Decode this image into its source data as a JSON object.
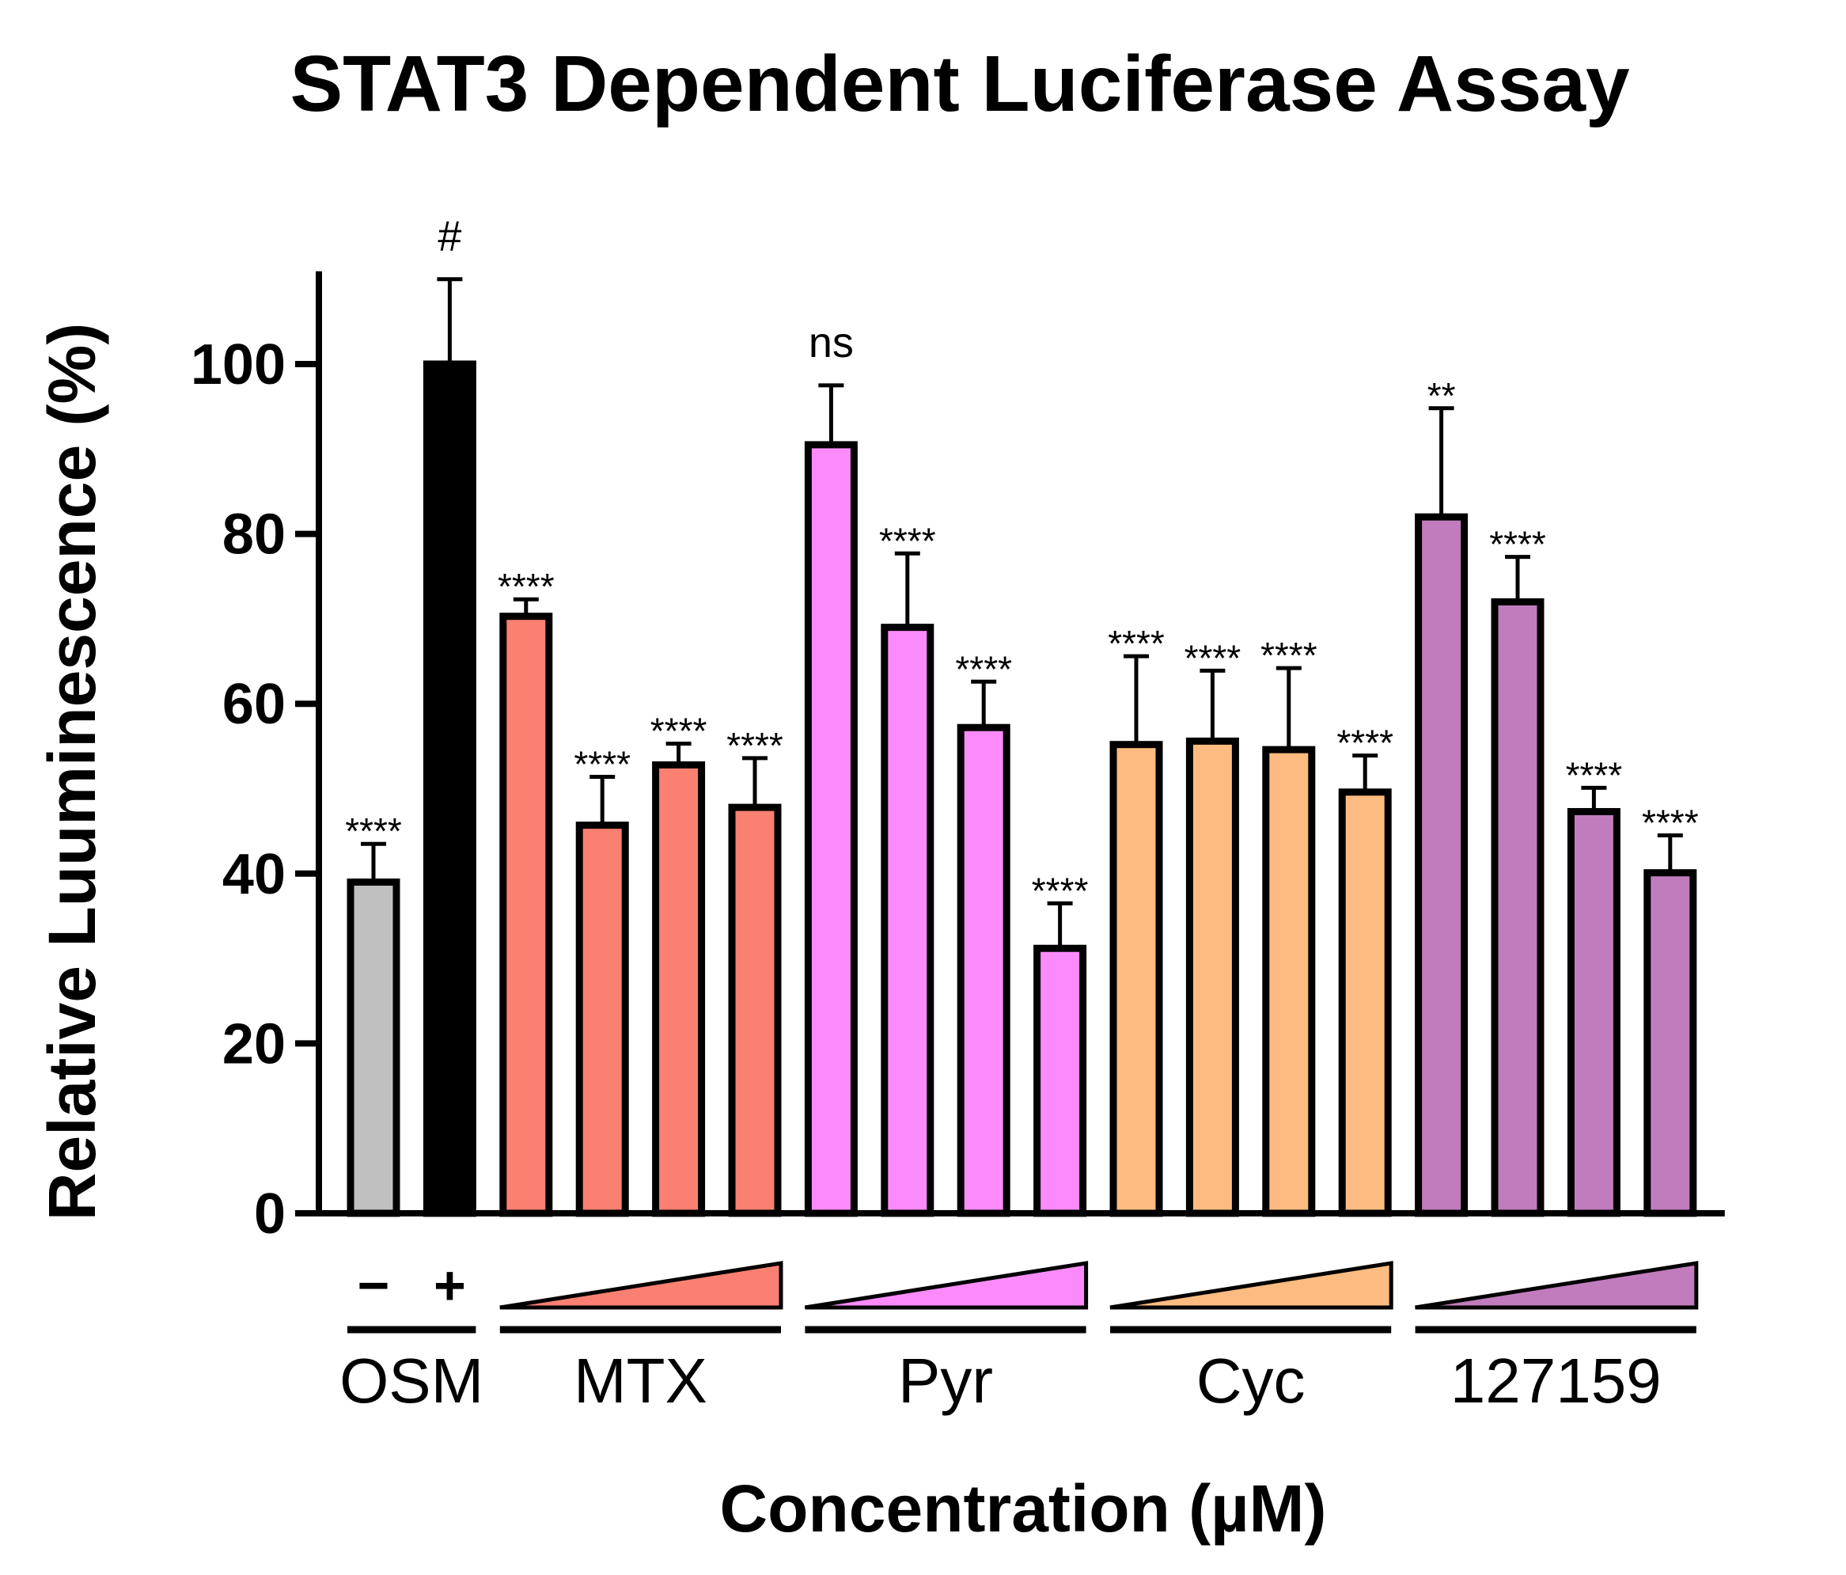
{
  "chart_data": {
    "type": "bar",
    "title": "STAT3  Dependent  Luciferase Assay",
    "xlabel": "Concentration (µM)",
    "ylabel": "Relative Luuminescence (%)",
    "ylim": [
      0,
      110
    ],
    "yticks": [
      0,
      20,
      40,
      60,
      80,
      100
    ],
    "grid": false,
    "groups": [
      {
        "name": "OSM",
        "color": "#c0c0c0",
        "bar_labels": [
          "−",
          "+"
        ],
        "bars": [
          {
            "value": 39,
            "error": 4.5,
            "annotation": "****",
            "color": "#c0c0c0"
          },
          {
            "value": 100,
            "error": 10,
            "annotation": "#",
            "color": "#000000"
          }
        ]
      },
      {
        "name": "MTX",
        "color": "#fa8072",
        "bars": [
          {
            "value": 70.3,
            "error": 2,
            "annotation": "****"
          },
          {
            "value": 45.7,
            "error": 5.7,
            "annotation": "****"
          },
          {
            "value": 52.8,
            "error": 2.5,
            "annotation": "****"
          },
          {
            "value": 47.8,
            "error": 5.8,
            "annotation": "****"
          }
        ]
      },
      {
        "name": "Pyr",
        "color": "#fb8bfb",
        "bars": [
          {
            "value": 90.5,
            "error": 7,
            "annotation": "ns"
          },
          {
            "value": 69,
            "error": 8.7,
            "annotation": "****"
          },
          {
            "value": 57.2,
            "error": 5.4,
            "annotation": "****"
          },
          {
            "value": 31.2,
            "error": 5.3,
            "annotation": "****"
          }
        ]
      },
      {
        "name": "Cyc",
        "color": "#fcbb80",
        "bars": [
          {
            "value": 55.2,
            "error": 10.4,
            "annotation": "****"
          },
          {
            "value": 55.6,
            "error": 8.3,
            "annotation": "****"
          },
          {
            "value": 54.6,
            "error": 9.6,
            "annotation": "****"
          },
          {
            "value": 49.6,
            "error": 4.3,
            "annotation": "****"
          }
        ]
      },
      {
        "name": "127159",
        "color": "#c17cbd",
        "bars": [
          {
            "value": 82,
            "error": 12.8,
            "annotation": "**"
          },
          {
            "value": 72,
            "error": 5.3,
            "annotation": "****"
          },
          {
            "value": 47.3,
            "error": 2.8,
            "annotation": "****"
          },
          {
            "value": 40.1,
            "error": 4.4,
            "annotation": "****"
          }
        ]
      }
    ]
  }
}
